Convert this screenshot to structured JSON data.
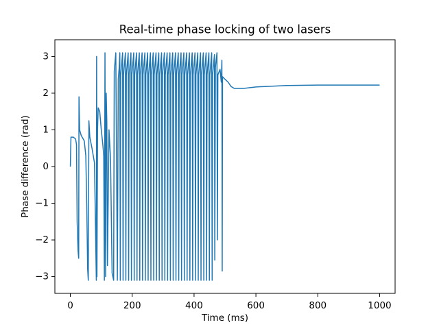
{
  "chart_data": {
    "type": "line",
    "title": "Real-time phase locking of two lasers",
    "x_label": "Time (ms)",
    "y_label": "Phase difference (rad)",
    "xlim": [
      -50,
      1050
    ],
    "ylim": [
      -3.456,
      3.456
    ],
    "xticks": [
      0,
      200,
      400,
      600,
      800,
      1000
    ],
    "yticks": [
      {
        "value": -3,
        "label": "−3"
      },
      {
        "value": -2,
        "label": "−2"
      },
      {
        "value": -1,
        "label": "−1"
      },
      0,
      1,
      2,
      3
    ],
    "color": "#1f77b4",
    "x": [
      0,
      2,
      10,
      17,
      20,
      22,
      25,
      27,
      28,
      30,
      35,
      45,
      50,
      53,
      56,
      58,
      60,
      63,
      70,
      78,
      82,
      84,
      85,
      86,
      88,
      90,
      95,
      100,
      105,
      108,
      110,
      112,
      114,
      116,
      118,
      120,
      125,
      130,
      135,
      140,
      142,
      147,
      152,
      155,
      158,
      160,
      161.5,
      163,
      169,
      170.5,
      172,
      178,
      179.5,
      181,
      187,
      188.5,
      190,
      196,
      197.5,
      199,
      205,
      206.5,
      208,
      214,
      215.5,
      217,
      223,
      224.5,
      226,
      232,
      233.5,
      235,
      241,
      242.5,
      244,
      250,
      251.5,
      253,
      259,
      260.5,
      262,
      268,
      269.5,
      271,
      277,
      278.5,
      280,
      286,
      287.5,
      289,
      295,
      296.5,
      298,
      304,
      305.5,
      307,
      313,
      314.5,
      316,
      322,
      323.5,
      325,
      331,
      332.5,
      334,
      340,
      341.5,
      343,
      349,
      350.5,
      352,
      358,
      359.5,
      361,
      367,
      368.5,
      370,
      376,
      377.5,
      379,
      385,
      386.5,
      388,
      394,
      395.5,
      397,
      403,
      404.5,
      406,
      412,
      413.5,
      415,
      421,
      422.5,
      424,
      430,
      431.5,
      433,
      439,
      440.5,
      442,
      448,
      449.5,
      451,
      457,
      458.5,
      460,
      466,
      467,
      469,
      474,
      475.5,
      477,
      484,
      488,
      490,
      491,
      492,
      500,
      510,
      520,
      530,
      560,
      600,
      700,
      800,
      900,
      1000
    ],
    "values": [
      0,
      0.8,
      0.8,
      0.75,
      0.6,
      -1.5,
      -2.3,
      -2.5,
      1.9,
      1.0,
      0.85,
      0.7,
      0.3,
      -1.0,
      -2.8,
      -3.1,
      1.25,
      0.8,
      0.5,
      0.1,
      -2.0,
      -3.1,
      3.0,
      -3.0,
      1.0,
      1.6,
      1.5,
      1.0,
      0.6,
      0.3,
      -3.1,
      3.1,
      -3.0,
      2.0,
      1.2,
      -2.7,
      1.0,
      0.2,
      -2.9,
      -3.1,
      2.6,
      3.1,
      -3.1,
      2.4,
      2.7,
      3.1,
      -3.1,
      2.5,
      3.1,
      -3.1,
      2.5,
      3.1,
      -3.1,
      2.5,
      3.1,
      -3.1,
      2.5,
      3.1,
      -3.1,
      2.5,
      3.1,
      -3.1,
      2.5,
      3.1,
      -3.1,
      2.5,
      3.1,
      -3.1,
      2.5,
      3.1,
      -3.1,
      2.5,
      3.1,
      -3.1,
      2.5,
      3.1,
      -3.1,
      2.5,
      3.1,
      -3.1,
      2.5,
      3.1,
      -3.1,
      2.5,
      3.1,
      -3.1,
      2.5,
      3.1,
      -3.1,
      2.5,
      3.1,
      -3.1,
      2.5,
      3.1,
      -3.1,
      2.5,
      3.1,
      -3.1,
      2.5,
      3.1,
      -3.1,
      2.5,
      3.1,
      -3.1,
      2.5,
      3.1,
      -3.1,
      2.5,
      3.1,
      -3.1,
      2.5,
      3.1,
      -3.1,
      2.5,
      3.1,
      -3.1,
      2.5,
      3.1,
      -3.1,
      2.5,
      3.1,
      -3.1,
      2.5,
      3.1,
      -3.1,
      2.5,
      3.1,
      -3.1,
      2.5,
      3.1,
      -3.1,
      2.5,
      3.1,
      -3.1,
      2.5,
      3.1,
      -3.1,
      2.5,
      3.1,
      -3.1,
      2.5,
      3.1,
      -3.1,
      2.5,
      3.1,
      -3.1,
      2.5,
      3.05,
      -2.55,
      2.7,
      3.1,
      -2.0,
      2.5,
      2.65,
      2.3,
      2.9,
      -2.85,
      2.45,
      2.38,
      2.3,
      2.18,
      2.13,
      2.13,
      2.17,
      2.21,
      2.22,
      2.22,
      2.22
    ]
  }
}
